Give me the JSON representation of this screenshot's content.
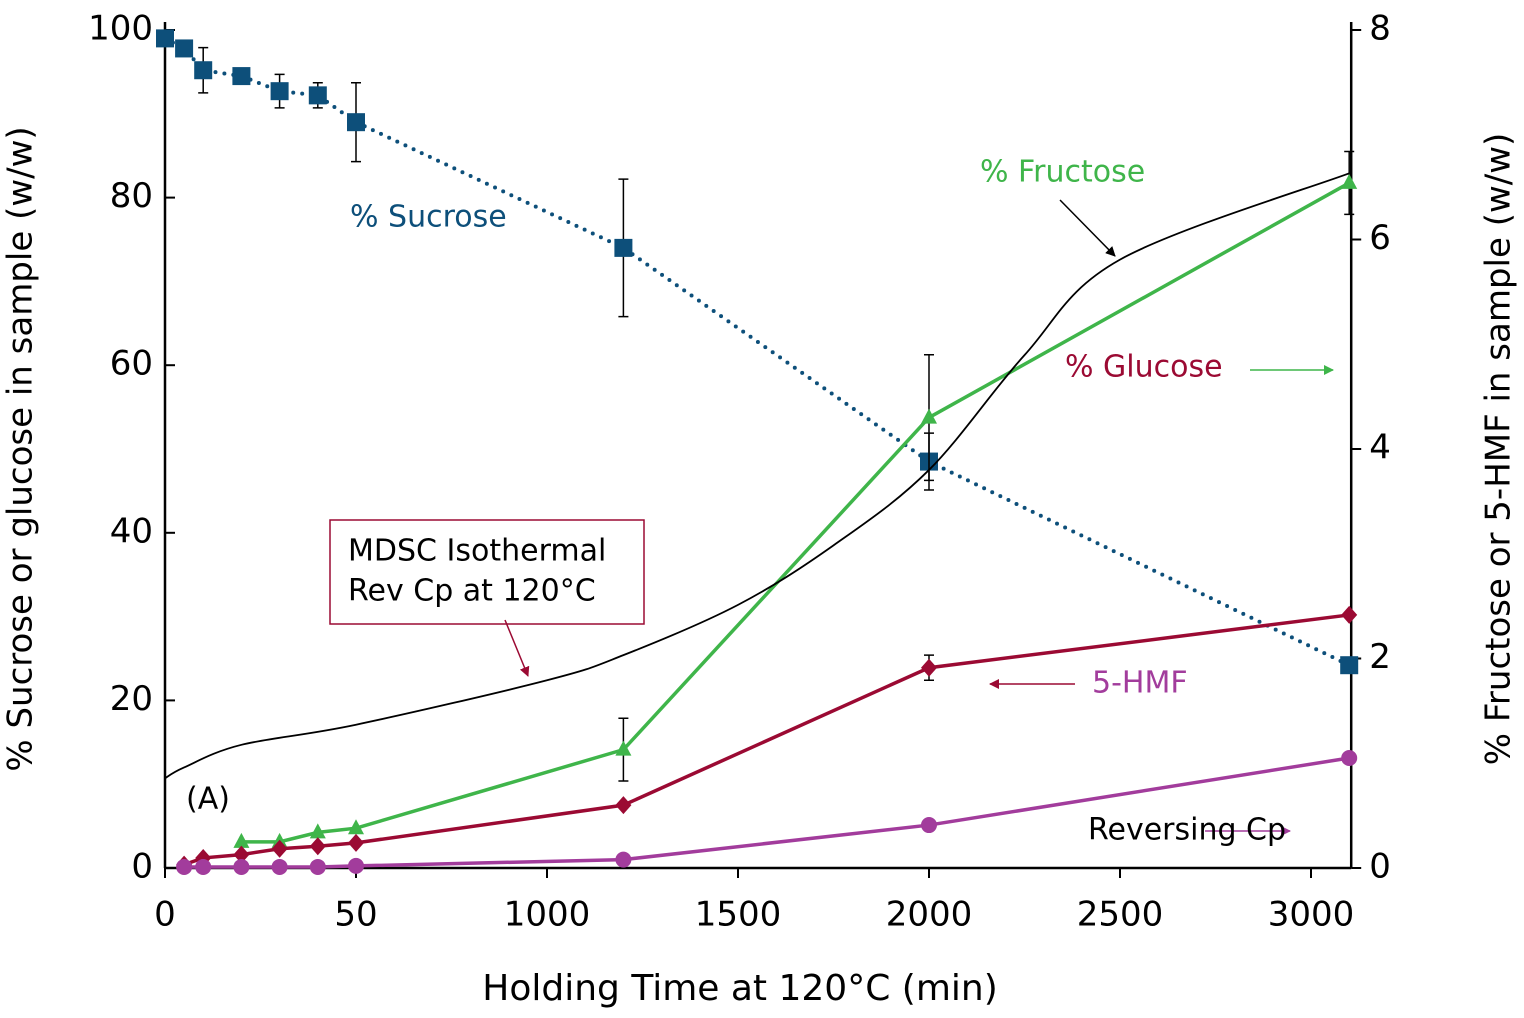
{
  "chart_data": {
    "type": "line",
    "x_label": "Holding Time at 120°C (min)",
    "y_label": "% Sucrose or glucose in sample (w/w)",
    "y2_label": "% Fructose or 5-HMF in sample (w/w)",
    "xlim": [
      0,
      3100
    ],
    "xticks": [
      0,
      50,
      1000,
      1500,
      2000,
      2500,
      3000
    ],
    "x_scale": "piecewise",
    "ylim": [
      0,
      100
    ],
    "yticks": [
      0,
      20,
      40,
      60,
      80,
      100
    ],
    "y2lim": [
      0,
      8
    ],
    "y2ticks": [
      0,
      2,
      4,
      6,
      8
    ],
    "series": [
      {
        "name": "% Sucrose",
        "color": "#0d4f7a",
        "marker": "square",
        "dash": "dotted",
        "x": [
          0,
          5,
          10,
          20,
          30,
          40,
          50,
          1200,
          2000,
          3100
        ],
        "values": [
          99,
          97.8,
          95.2,
          94.5,
          92.7,
          92.2,
          89,
          74,
          48.5,
          24.2
        ],
        "errors": [
          null,
          null,
          2.7,
          null,
          2,
          1.5,
          4.7,
          8.2,
          3.4,
          null
        ]
      },
      {
        "name": "% Fructose",
        "color": "#3fb54a",
        "marker": "triangle",
        "axis": "y2",
        "x": [
          20,
          30,
          40,
          50,
          1200,
          2000,
          3100
        ],
        "values": [
          0.25,
          0.25,
          0.34,
          0.38,
          1.13,
          4.3,
          6.54
        ],
        "errors": [
          null,
          null,
          null,
          null,
          0.3,
          0.6,
          0.3
        ]
      },
      {
        "name": "% Glucose",
        "color": "#9b0a33",
        "marker": "diamond",
        "x": [
          5,
          10,
          20,
          30,
          40,
          50,
          1200,
          2000,
          3100
        ],
        "values": [
          0.4,
          1.2,
          1.6,
          2.3,
          2.6,
          3.0,
          7.5,
          23.9,
          30.2
        ],
        "errors": [
          null,
          null,
          null,
          null,
          null,
          null,
          null,
          1.5,
          null
        ]
      },
      {
        "name": "5-HMF",
        "color": "#a23c9c",
        "marker": "circle",
        "axis": "y2",
        "x": [
          5,
          10,
          20,
          30,
          40,
          50,
          1200,
          2000,
          3100
        ],
        "values": [
          0.01,
          0.01,
          0.01,
          0.01,
          0.01,
          0.02,
          0.08,
          0.41,
          1.05
        ]
      },
      {
        "name": "Reversing Cp",
        "color": "#000000",
        "marker": "none",
        "x": [
          0,
          5,
          20,
          50,
          1000,
          1200,
          1500,
          1750,
          2000,
          2250,
          2500,
          3100
        ],
        "values": [
          10.7,
          12,
          14.7,
          17.1,
          22.4,
          25.4,
          31.4,
          38.5,
          47.5,
          61.2,
          72.6,
          82.9
        ]
      }
    ],
    "annotations": [
      "MDSC Isothermal",
      "Rev Cp at 120°C",
      "(A)"
    ]
  }
}
